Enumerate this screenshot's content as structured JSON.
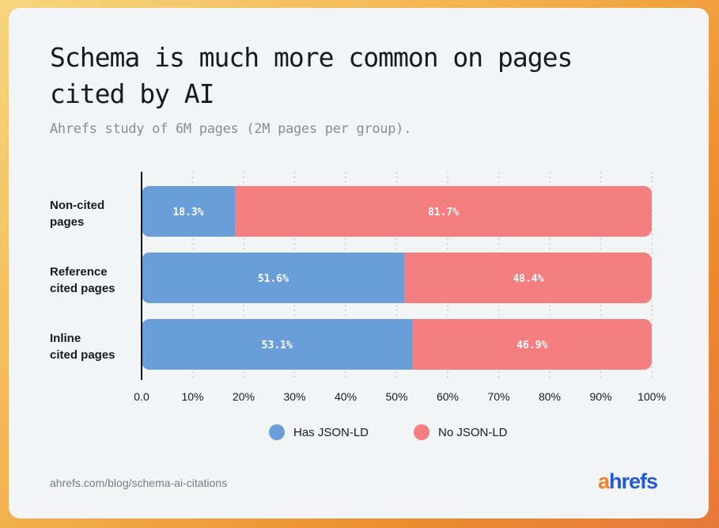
{
  "chart_data": {
    "type": "bar",
    "stacked": true,
    "orientation": "horizontal",
    "title": "Schema is much more common on pages cited by AI",
    "subtitle": "Ahrefs study of 6M pages (2M pages per group).",
    "categories": [
      [
        "Non-cited",
        "pages"
      ],
      [
        "Reference",
        "cited pages"
      ],
      [
        "Inline",
        "cited pages"
      ]
    ],
    "series": [
      {
        "name": "Has JSON-LD",
        "color": "#6a9ed8",
        "values": [
          18.3,
          51.6,
          53.1
        ],
        "labels": [
          "18.3%",
          "51.6%",
          "53.1%"
        ]
      },
      {
        "name": "No JSON-LD",
        "color": "#f47e80",
        "values": [
          81.7,
          48.4,
          46.9
        ],
        "labels": [
          "81.7%",
          "48.4%",
          "46.9%"
        ]
      }
    ],
    "xlim": [
      0,
      100
    ],
    "xticks": [
      "0.0",
      "10%",
      "20%",
      "30%",
      "40%",
      "50%",
      "60%",
      "70%",
      "80%",
      "90%",
      "100%"
    ],
    "grid": "vertical dotted",
    "legend": "bottom-center"
  },
  "footer": {
    "source": "ahrefs.com/blog/schema-ai-citations",
    "logo_first": "a",
    "logo_rest": "hrefs"
  }
}
